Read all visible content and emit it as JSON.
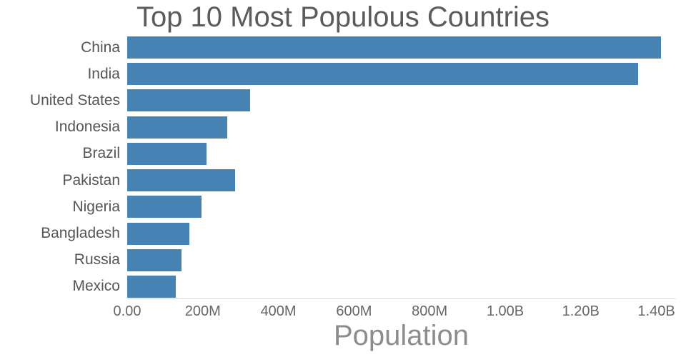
{
  "chart_data": {
    "type": "bar",
    "orientation": "horizontal",
    "title": "Top 10 Most Populous Countries",
    "xlabel": "Population",
    "ylabel": "",
    "categories": [
      "China",
      "India",
      "United States",
      "Indonesia",
      "Brazil",
      "Pakistan",
      "Nigeria",
      "Bangladesh",
      "Russia",
      "Mexico"
    ],
    "values": [
      1412000000,
      1352000000,
      325000000,
      264000000,
      209000000,
      285000000,
      196000000,
      165000000,
      143000000,
      128000000
    ],
    "xlim": [
      0,
      1450000000
    ],
    "x_ticks": [
      {
        "value": 0,
        "label": "0.00"
      },
      {
        "value": 200000000,
        "label": "200M"
      },
      {
        "value": 400000000,
        "label": "400M"
      },
      {
        "value": 600000000,
        "label": "600M"
      },
      {
        "value": 800000000,
        "label": "800M"
      },
      {
        "value": 1000000000,
        "label": "1.00B"
      },
      {
        "value": 1200000000,
        "label": "1.20B"
      },
      {
        "value": 1400000000,
        "label": "1.40B"
      }
    ],
    "bar_color": "#4682B4",
    "grid": false,
    "legend": "none"
  }
}
